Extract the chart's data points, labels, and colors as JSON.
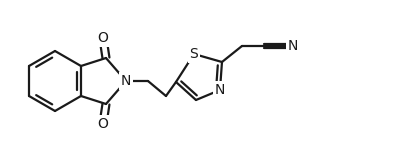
{
  "bg_color": "#ffffff",
  "line_color": "#1a1a1a",
  "line_width": 1.6,
  "font_size": 10,
  "figsize": [
    4.1,
    1.62
  ],
  "dpi": 100,
  "xlim": [
    0,
    410
  ],
  "ylim": [
    0,
    162
  ]
}
